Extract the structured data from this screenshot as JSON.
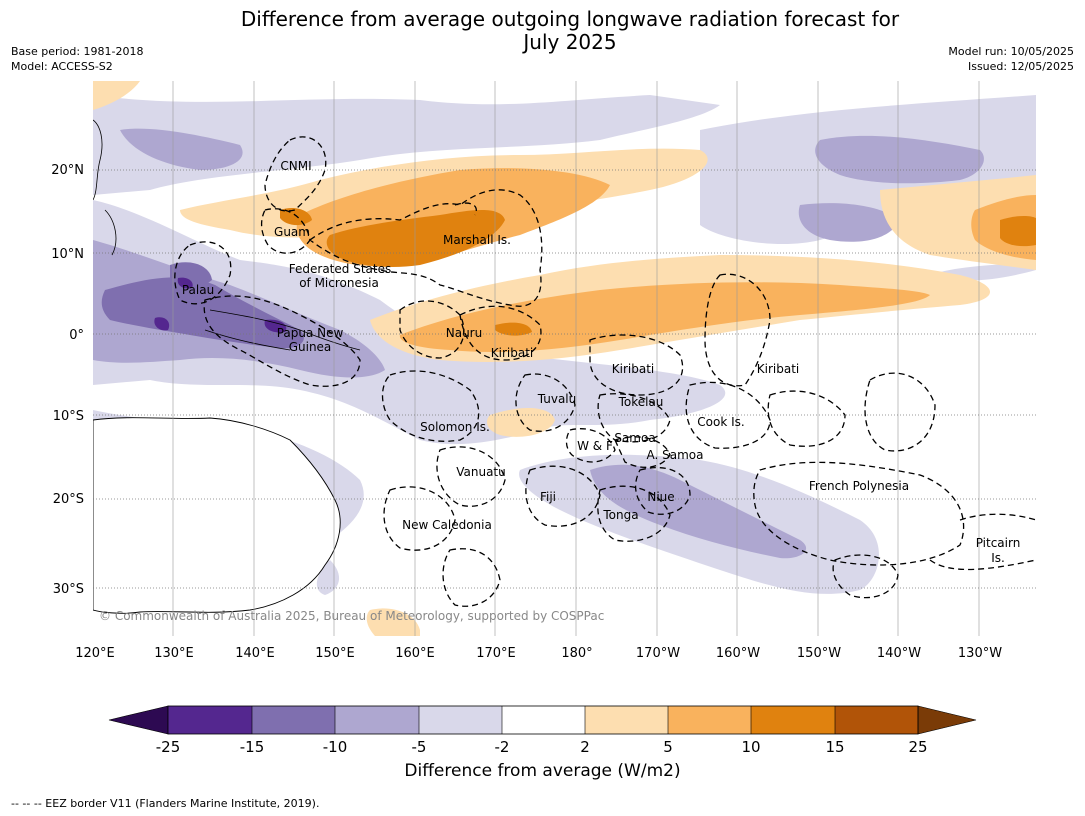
{
  "title": {
    "line1": "Difference from average outgoing longwave radiation forecast for",
    "line2": "July 2025"
  },
  "meta": {
    "base_period": "Base period: 1981-2018",
    "model": "Model: ACCESS-S2",
    "model_run": "Model run: 10/05/2025",
    "issued": "Issued: 12/05/2025"
  },
  "axes": {
    "lon_ticks": [
      "120°E",
      "130°E",
      "140°E",
      "150°E",
      "160°E",
      "170°E",
      "180°",
      "170°W",
      "160°W",
      "150°W",
      "140°W",
      "130°W"
    ],
    "lat_ticks": [
      "20°N",
      "10°N",
      "0°",
      "10°S",
      "20°S",
      "30°S"
    ]
  },
  "regions": {
    "cnmi": "CNMI",
    "guam": "Guam",
    "marshall": "Marshall Is.",
    "fsm1": "Federated States",
    "fsm2": "of Micronesia",
    "palau": "Palau",
    "png1": "Papua New",
    "png2": "Guinea",
    "nauru": "Nauru",
    "kiribati_w": "Kiribati",
    "kiribati_c": "Kiribati",
    "kiribati_e": "Kiribati",
    "tuvalu": "Tuvalu",
    "tokelau": "Tokelau",
    "solomon": "Solomon Is.",
    "cook": "Cook Is.",
    "samoa": "Samoa",
    "wf": "W & F",
    "asamoa": "A. Samoa",
    "vanuatu": "Vanuatu",
    "fiji": "Fiji",
    "niue": "Niue",
    "tonga": "Tonga",
    "frpoly": "French Polynesia",
    "newcal": "New Caledonia",
    "pitcairn1": "Pitcairn",
    "pitcairn2": "Is."
  },
  "copyright": "© Commonwealth of Australia 2025, Bureau of Meteorology, supported by COSPPac",
  "colorbar": {
    "title": "Difference from average (W/m2)",
    "labels": [
      "-25",
      "-15",
      "-10",
      "-5",
      "-2",
      "2",
      "5",
      "10",
      "15",
      "25"
    ],
    "colors": [
      "#2d0a52",
      "#54278f",
      "#7f6faf",
      "#aea7d0",
      "#d9d8ea",
      "#ffffff",
      "#fddeb0",
      "#f9b25d",
      "#e0820f",
      "#b15408",
      "#7a3b07"
    ]
  },
  "footnote": "--  --  -- EEZ border V11 (Flanders Marine Institute, 2019)."
}
